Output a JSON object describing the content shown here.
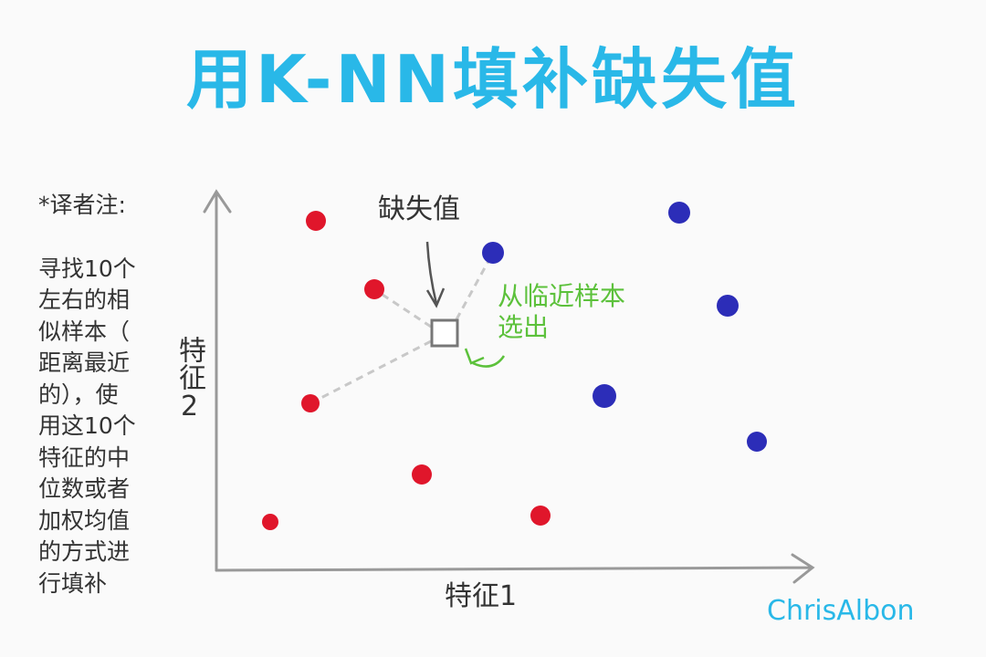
{
  "title": "用K-NN填补缺失值",
  "note": {
    "heading": "*译者注:",
    "lines": [
      "寻找10个",
      "左右的相",
      "似样本（",
      "距离最近",
      "的），使",
      "用这10个",
      "特征的中",
      "位数或者",
      "加权均值",
      "的方式进",
      "行填补"
    ]
  },
  "axes": {
    "x_label": "特征1",
    "y_label": "特征2"
  },
  "annotations": {
    "missing_value": "缺失值",
    "selected": [
      "从临近样本",
      "选出"
    ]
  },
  "signature": "ChrisAlbon"
}
